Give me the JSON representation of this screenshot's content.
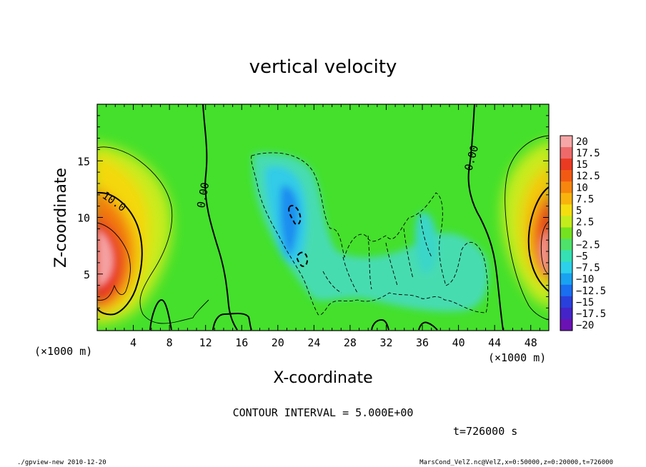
{
  "chart_data": {
    "type": "heatmap",
    "title": "vertical velocity",
    "xlabel": "X-coordinate",
    "ylabel": "Z-coordinate",
    "x_unit": "(×1000 m)",
    "y_unit": "(×1000 m)",
    "xlim": [
      0,
      50
    ],
    "ylim": [
      0,
      20
    ],
    "xticks": [
      "4",
      "8",
      "12",
      "16",
      "20",
      "24",
      "28",
      "32",
      "36",
      "40",
      "44",
      "48"
    ],
    "xtick_values": [
      4,
      8,
      12,
      16,
      20,
      24,
      28,
      32,
      36,
      40,
      44,
      48
    ],
    "yticks": [
      "5",
      "10",
      "15"
    ],
    "ytick_values": [
      5,
      10,
      15
    ],
    "colorbar": {
      "labels": [
        "20",
        "17.5",
        "15",
        "12.5",
        "10",
        "7.5",
        "5",
        "2.5",
        "0",
        "−2.5",
        "−5",
        "−7.5",
        "−10",
        "−12.5",
        "−15",
        "−17.5",
        "−20"
      ],
      "values": [
        20,
        17.5,
        15,
        12.5,
        10,
        7.5,
        5,
        2.5,
        0,
        -2.5,
        -5,
        -7.5,
        -10,
        -12.5,
        -15,
        -17.5,
        -20
      ],
      "colors": [
        "#f6a6a6",
        "#ee6a6a",
        "#ea3a22",
        "#f25a14",
        "#f6860e",
        "#f8b40c",
        "#f4de10",
        "#c4ec1c",
        "#74e21e",
        "#4ee26a",
        "#34e0b4",
        "#2cd0ea",
        "#18a2f0",
        "#1a6ef0",
        "#2a40dc",
        "#4424c8",
        "#6a12b4"
      ]
    },
    "contour_labels": [
      "10.0",
      "0.00",
      "0.00"
    ],
    "contour_interval_text": "CONTOUR INTERVAL = 5.000E+00",
    "time_text": "t=726000 s",
    "grid": false
  },
  "footer": {
    "left": "./gpview-new  2010-12-20",
    "right": "MarsCond_VelZ.nc@VelZ,x=0:50000,z=0:20000,t=726000"
  }
}
